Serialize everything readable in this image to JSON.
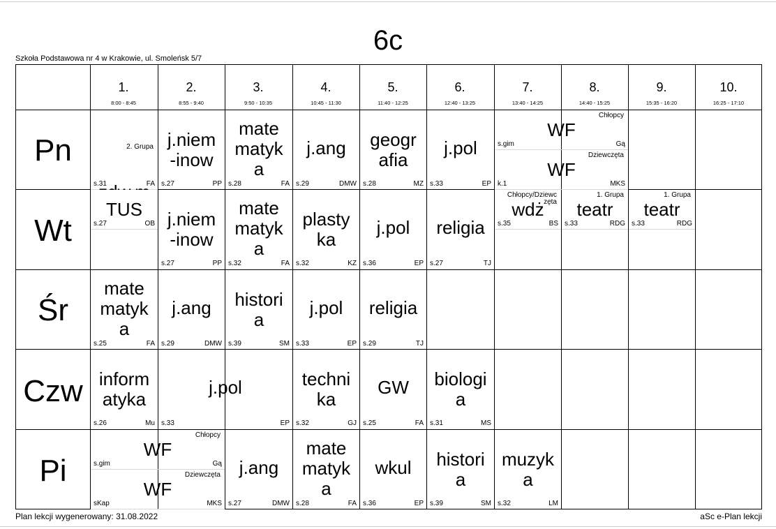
{
  "title": "6c",
  "school": "Szkoła Podstawowa nr 4 w Krakowie, ul. Smoleńsk 5/7",
  "footer": {
    "generated": "Plan lekcji wygenerowany: 31.08.2022",
    "brand": "aSc e-Plan lekcji"
  },
  "periods": [
    {
      "num": "1.",
      "time": "8:00 - 8:45"
    },
    {
      "num": "2.",
      "time": "8:55 - 9:40"
    },
    {
      "num": "3.",
      "time": "9:50 - 10:35"
    },
    {
      "num": "4.",
      "time": "10:45 - 11:30"
    },
    {
      "num": "5.",
      "time": "11:40 - 12:25"
    },
    {
      "num": "6.",
      "time": "12:40 - 13:25"
    },
    {
      "num": "7.",
      "time": "13:40 - 14:25"
    },
    {
      "num": "8.",
      "time": "14:40 - 15:25"
    },
    {
      "num": "9.",
      "time": "15:35 - 16:20"
    },
    {
      "num": "10.",
      "time": "16:25 - 17:10"
    }
  ],
  "days": [
    {
      "name": "Pn",
      "lessons": [
        {
          "subject": "zdw.m\nat.",
          "room": "s.31",
          "teacher": "FA",
          "group": "2. Grupa"
        },
        {
          "subject": "j.niem\n-inow",
          "room": "s.27",
          "teacher": "PP"
        },
        {
          "subject": "mate\nmatyk\na",
          "room": "s.28",
          "teacher": "FA"
        },
        {
          "subject": "j.ang",
          "room": "s.29",
          "teacher": "DMW"
        },
        {
          "subject": "geogr\nafia",
          "room": "s.28",
          "teacher": "MZ"
        },
        {
          "subject": "j.pol",
          "room": "s.33",
          "teacher": "EP"
        },
        {
          "subject": "WF",
          "room": "s.gim",
          "teacher": "Gą",
          "group": "Chłopcy"
        },
        {
          "subject": "WF",
          "room": "k.1",
          "teacher": "MKS",
          "group": "Dziewczęta"
        }
      ]
    },
    {
      "name": "Wt",
      "lessons": [
        {
          "subject": "TUS",
          "room": "s.27",
          "teacher": "OB"
        },
        {
          "subject": "j.niem\n-inow",
          "room": "s.27",
          "teacher": "PP"
        },
        {
          "subject": "mate\nmatyk\na",
          "room": "s.32",
          "teacher": "FA"
        },
        {
          "subject": "plasty\nka",
          "room": "s.32",
          "teacher": "KZ"
        },
        {
          "subject": "j.pol",
          "room": "s.36",
          "teacher": "EP"
        },
        {
          "subject": "religia",
          "room": "s.27",
          "teacher": "TJ"
        },
        {
          "subject": "wdż",
          "room": "s.35",
          "teacher": "BS",
          "group": "Chłopcy/Dziewc\nzęta"
        },
        {
          "subject": "teatr",
          "room": "s.33",
          "teacher": "RDG",
          "group": "1. Grupa"
        },
        {
          "subject": "teatr",
          "room": "s.33",
          "teacher": "RDG",
          "group": "1. Grupa"
        }
      ]
    },
    {
      "name": "Śr",
      "lessons": [
        {
          "subject": "mate\nmatyk\na",
          "room": "s.25",
          "teacher": "FA"
        },
        {
          "subject": "j.ang",
          "room": "s.29",
          "teacher": "DMW"
        },
        {
          "subject": "histori\na",
          "room": "s.39",
          "teacher": "SM"
        },
        {
          "subject": "j.pol",
          "room": "s.33",
          "teacher": "EP"
        },
        {
          "subject": "religia",
          "room": "s.29",
          "teacher": "TJ"
        }
      ]
    },
    {
      "name": "Czw",
      "lessons": [
        {
          "subject": "inform\natyka",
          "room": "s.26",
          "teacher": "Mu"
        },
        {
          "subject": "j.pol",
          "room": "s.33",
          "teacher": "EP"
        },
        {
          "subject": "techni\nka",
          "room": "s.32",
          "teacher": "GJ"
        },
        {
          "subject": "GW",
          "room": "s.25",
          "teacher": "FA"
        },
        {
          "subject": "biologi\na",
          "room": "s.31",
          "teacher": "MS"
        }
      ]
    },
    {
      "name": "Pi",
      "lessons": [
        {
          "subject": "WF",
          "room": "s.gim",
          "teacher": "Gą",
          "group": "Chłopcy"
        },
        {
          "subject": "WF",
          "room": "sKap",
          "teacher": "MKS",
          "group": "Dziewczęta"
        },
        {
          "subject": "j.ang",
          "room": "s.27",
          "teacher": "DMW"
        },
        {
          "subject": "mate\nmatyk\na",
          "room": "s.28",
          "teacher": "FA"
        },
        {
          "subject": "wkul",
          "room": "s.36",
          "teacher": "EP"
        },
        {
          "subject": "histori\na",
          "room": "s.39",
          "teacher": "SM"
        },
        {
          "subject": "muzyk\na",
          "room": "s.32",
          "teacher": "LM"
        }
      ]
    }
  ]
}
